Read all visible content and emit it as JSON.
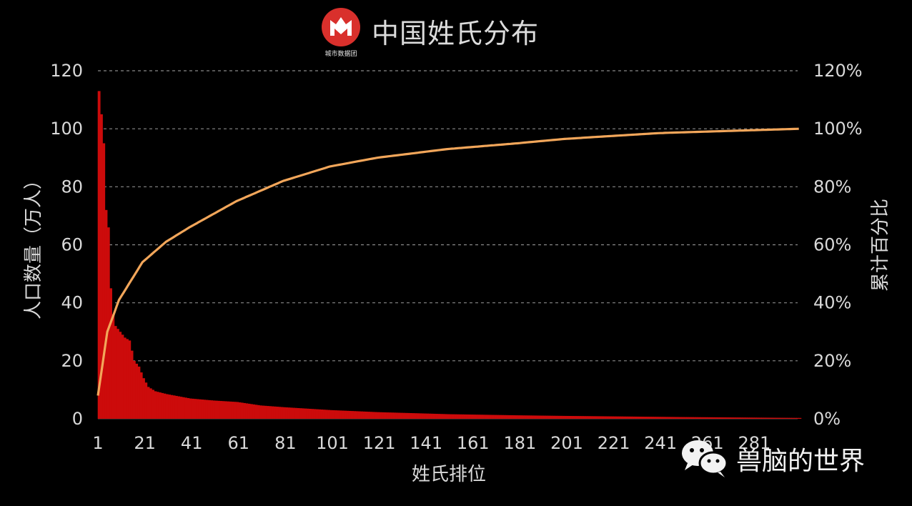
{
  "header": {
    "title": "中国姓氏分布",
    "logo_text": "城市数据团"
  },
  "watermark": {
    "text": "兽脑的世界",
    "icon": "wechat-icon"
  },
  "colors": {
    "bars": "#cc0b0b",
    "cumulative_line": "#f2a65a",
    "grid": "#8a8a8a",
    "background": "#000000",
    "logo_red": "#d9302c"
  },
  "chart_data": {
    "type": "bar+line",
    "title": "中国姓氏分布",
    "xlabel": "姓氏排位",
    "ylabel_left": "人口数量（万人）",
    "ylabel_right": "累计百分比",
    "ylim_left": [
      0,
      120
    ],
    "ylim_right": [
      0,
      1.2
    ],
    "xlim": [
      1,
      300
    ],
    "grid": true,
    "x_ticks": [
      "1",
      "21",
      "41",
      "61",
      "81",
      "101",
      "121",
      "141",
      "161",
      "181",
      "201",
      "221",
      "241",
      "261",
      "281"
    ],
    "y_ticks_left": [
      "0",
      "20",
      "40",
      "60",
      "80",
      "100",
      "120"
    ],
    "y_ticks_right": [
      "0%",
      "20%",
      "40%",
      "60%",
      "80%",
      "100%",
      "120%"
    ],
    "series": [
      {
        "type": "bar",
        "x": [
          1,
          2,
          3,
          4,
          5,
          6,
          7,
          8,
          10,
          12,
          14,
          16,
          18,
          20,
          22,
          25,
          30,
          40,
          50,
          60,
          70,
          80,
          100,
          120,
          150,
          180,
          200,
          250,
          300
        ],
        "values": [
          113,
          105,
          95,
          72,
          66,
          45,
          36,
          32,
          30,
          28,
          27,
          20,
          18,
          14,
          11,
          9.5,
          8.5,
          7,
          6.3,
          5.8,
          4.6,
          4,
          3,
          2.3,
          1.6,
          1.2,
          1,
          0.6,
          0.3
        ]
      },
      {
        "type": "line",
        "x": [
          1,
          5,
          10,
          20,
          30,
          40,
          60,
          80,
          100,
          120,
          150,
          180,
          200,
          240,
          300
        ],
        "values": [
          0.08,
          0.3,
          0.41,
          0.54,
          0.61,
          0.66,
          0.75,
          0.82,
          0.87,
          0.9,
          0.93,
          0.95,
          0.965,
          0.985,
          1.0
        ]
      }
    ]
  }
}
